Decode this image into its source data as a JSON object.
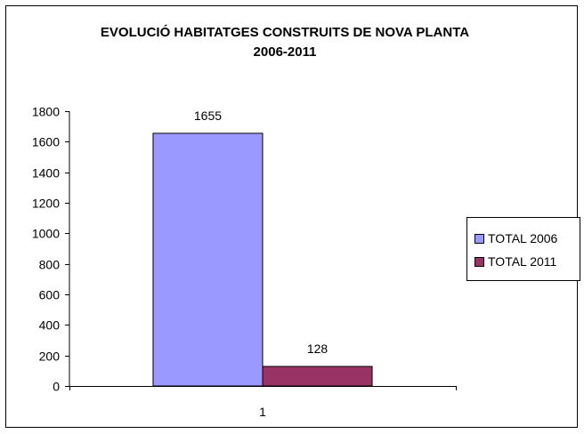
{
  "chart_data": {
    "type": "bar",
    "title_lines": [
      "EVOLUCIÓ HABITATGES CONSTRUITS DE NOVA PLANTA",
      "2006-2011"
    ],
    "xlabel": "",
    "ylabel": "",
    "categories": [
      "1"
    ],
    "series": [
      {
        "name": "TOTAL 2006",
        "values": [
          1655
        ],
        "color": "#9999ff"
      },
      {
        "name": "TOTAL 2011",
        "values": [
          128
        ],
        "color": "#993366"
      }
    ],
    "data_labels": [
      "1655",
      "128"
    ],
    "y_ticks": [
      "0",
      "200",
      "400",
      "600",
      "800",
      "1000",
      "1200",
      "1400",
      "1600",
      "1800"
    ],
    "ylim": [
      0,
      1800
    ],
    "grid": false,
    "legend_position": "right"
  }
}
